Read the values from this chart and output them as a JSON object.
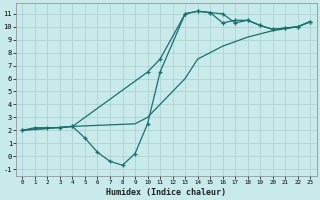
{
  "title": "",
  "xlabel": "Humidex (Indice chaleur)",
  "bg_color": "#c8eaea",
  "grid_color": "#aacece",
  "line_color": "#1a7070",
  "xlim": [
    -0.5,
    23.5
  ],
  "ylim": [
    -1.5,
    11.8
  ],
  "xticks": [
    0,
    1,
    2,
    3,
    4,
    5,
    6,
    7,
    8,
    9,
    10,
    11,
    12,
    13,
    14,
    15,
    16,
    17,
    18,
    19,
    20,
    21,
    22,
    23
  ],
  "yticks": [
    -1,
    0,
    1,
    2,
    3,
    4,
    5,
    6,
    7,
    8,
    9,
    10,
    11
  ],
  "curve_jagged_x": [
    0,
    1,
    2,
    3,
    4,
    5,
    6,
    7,
    8,
    9,
    10,
    11,
    13,
    14,
    15,
    16,
    17,
    18,
    19,
    20,
    21,
    22,
    23
  ],
  "curve_jagged_y": [
    2.0,
    2.2,
    2.2,
    2.2,
    2.3,
    1.4,
    0.3,
    -0.4,
    -0.7,
    0.2,
    2.5,
    6.5,
    11.0,
    11.2,
    11.1,
    11.0,
    10.3,
    10.5,
    10.1,
    9.8,
    9.9,
    10.0,
    10.4
  ],
  "curve_smooth_x": [
    0,
    4,
    10,
    11,
    13,
    14,
    15,
    16,
    17,
    18,
    19,
    20,
    21,
    22,
    23
  ],
  "curve_smooth_y": [
    2.0,
    2.3,
    6.5,
    7.5,
    11.0,
    11.2,
    11.1,
    10.3,
    10.5,
    10.5,
    10.1,
    9.8,
    9.9,
    10.0,
    10.4
  ],
  "curve_linear_x": [
    0,
    4,
    9,
    10,
    13,
    14,
    16,
    18,
    20,
    22,
    23
  ],
  "curve_linear_y": [
    2.0,
    2.3,
    2.5,
    3.0,
    6.0,
    7.5,
    8.5,
    9.2,
    9.7,
    10.0,
    10.4
  ]
}
